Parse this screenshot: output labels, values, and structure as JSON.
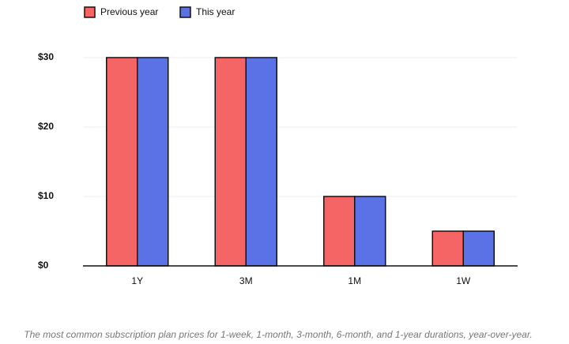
{
  "chart_data": {
    "type": "bar",
    "caption": "The most common subscription plan prices for 1-week, 1-month, 3-month, 6-month, and 1-year durations, year-over-year.",
    "categories": [
      "1Y",
      "3M",
      "1M",
      "1W"
    ],
    "series": [
      {
        "name": "Previous year",
        "color": "#f56565",
        "values": [
          30,
          30,
          10,
          5
        ]
      },
      {
        "name": "This year",
        "color": "#5a72e6",
        "values": [
          30,
          30,
          10,
          5
        ]
      }
    ],
    "ylim": [
      0,
      30
    ],
    "yticks": [
      {
        "value": 0,
        "label": "$0"
      },
      {
        "value": 10,
        "label": "$10"
      },
      {
        "value": 20,
        "label": "$20"
      },
      {
        "value": 30,
        "label": "$30"
      }
    ],
    "grid": true,
    "legend": "top-left"
  }
}
